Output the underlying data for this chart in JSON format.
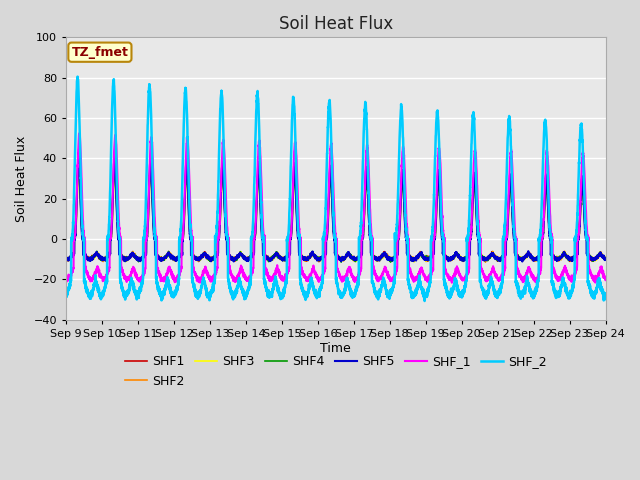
{
  "title": "Soil Heat Flux",
  "xlabel": "Time",
  "ylabel": "Soil Heat Flux",
  "ylim": [
    -40,
    100
  ],
  "series_names": [
    "SHF1",
    "SHF2",
    "SHF3",
    "SHF4",
    "SHF5",
    "SHF_1",
    "SHF_2"
  ],
  "series_colors": [
    "#cc0000",
    "#ff8800",
    "#ffff00",
    "#009900",
    "#0000cc",
    "#ff00ff",
    "#00ccff"
  ],
  "series_linewidths": [
    1.2,
    1.2,
    1.2,
    1.2,
    1.5,
    1.5,
    1.8
  ],
  "x_tick_labels": [
    "Sep 9",
    "Sep 10",
    "Sep 11",
    "Sep 12",
    "Sep 13",
    "Sep 14",
    "Sep 15",
    "Sep 16",
    "Sep 17",
    "Sep 18",
    "Sep 19",
    "Sep 20",
    "Sep 21",
    "Sep 22",
    "Sep 23",
    "Sep 24"
  ],
  "annotation_text": "TZ_fmet",
  "bg_color": "#d8d8d8",
  "plot_bg_color": "#e8e8e8",
  "title_fontsize": 12,
  "legend_fontsize": 9,
  "amp_day_shf1": [
    38,
    28
  ],
  "amp_day_shf2": [
    40,
    30
  ],
  "amp_day_shf3": [
    36,
    26
  ],
  "amp_day_shf4": [
    34,
    24
  ],
  "amp_day_shf5": [
    42,
    30
  ],
  "amp_day_shf_1": [
    52,
    42
  ],
  "amp_day_shf_2": [
    80,
    56
  ],
  "night_base_shf1": -10,
  "night_base_shf2": -10,
  "night_base_shf3": -10,
  "night_base_shf4": -10,
  "night_base_shf5": -10,
  "night_base_shf_1": -20,
  "night_base_shf_2": -28
}
